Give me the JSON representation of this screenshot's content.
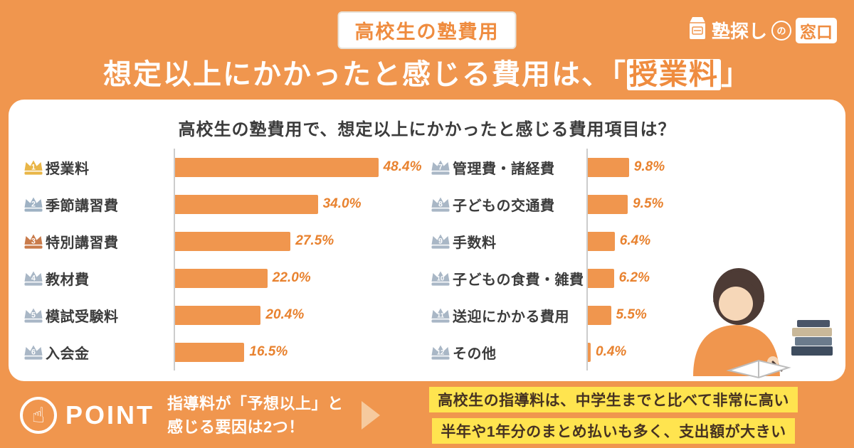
{
  "page": {
    "badge": "高校生の塾費用",
    "heading": {
      "prefix": "想定以上にかかったと感じる費用は、",
      "bracket_open": "「",
      "highlight": "授業料",
      "bracket_close": "」"
    }
  },
  "logo": {
    "text_main": "塾探し",
    "text_no": "の",
    "text_box": "窓口"
  },
  "chart_data": {
    "type": "bar",
    "title": "高校生の塾費用で、想定以上にかかったと感じる費用項目は？",
    "unit": "%",
    "xlim": [
      0,
      50
    ],
    "orientation": "horizontal",
    "items": [
      {
        "rank": 1,
        "label": "授業料",
        "value": 48.4
      },
      {
        "rank": 2,
        "label": "季節講習費",
        "value": 34.0
      },
      {
        "rank": 3,
        "label": "特別講習費",
        "value": 27.5
      },
      {
        "rank": 4,
        "label": "教材費",
        "value": 22.0
      },
      {
        "rank": 5,
        "label": "模試受験料",
        "value": 20.4
      },
      {
        "rank": 6,
        "label": "入会金",
        "value": 16.5
      },
      {
        "rank": 7,
        "label": "管理費・諸経費",
        "value": 9.8
      },
      {
        "rank": 8,
        "label": "子どもの交通費",
        "value": 9.5
      },
      {
        "rank": 9,
        "label": "手数料",
        "value": 6.4
      },
      {
        "rank": 10,
        "label": "子どもの食費・雑費",
        "value": 6.2
      },
      {
        "rank": 11,
        "label": "送迎にかかる費用",
        "value": 5.5
      },
      {
        "rank": 12,
        "label": "その他",
        "value": 0.4
      }
    ]
  },
  "point": {
    "label": "POINT",
    "lead_line1": "指導料が「予想以上」と",
    "lead_line2": "感じる要因は2つ！",
    "highlights": [
      "高校生の指導料は、中学生までと比べて非常に高い",
      "半年や1年分のまとめ払いも多く、支出額が大きい"
    ]
  },
  "colors": {
    "background": "#F0964E",
    "bar": "#F0964E",
    "accent_text": "#E8822F",
    "highlight_bg": "#FFE44F",
    "highlight_text": "#463222",
    "crown_gold": "#E9B648",
    "crown_silver": "#9FB2C4",
    "crown_bronze": "#C97B4B",
    "crown_default": "#A9B7C6"
  }
}
